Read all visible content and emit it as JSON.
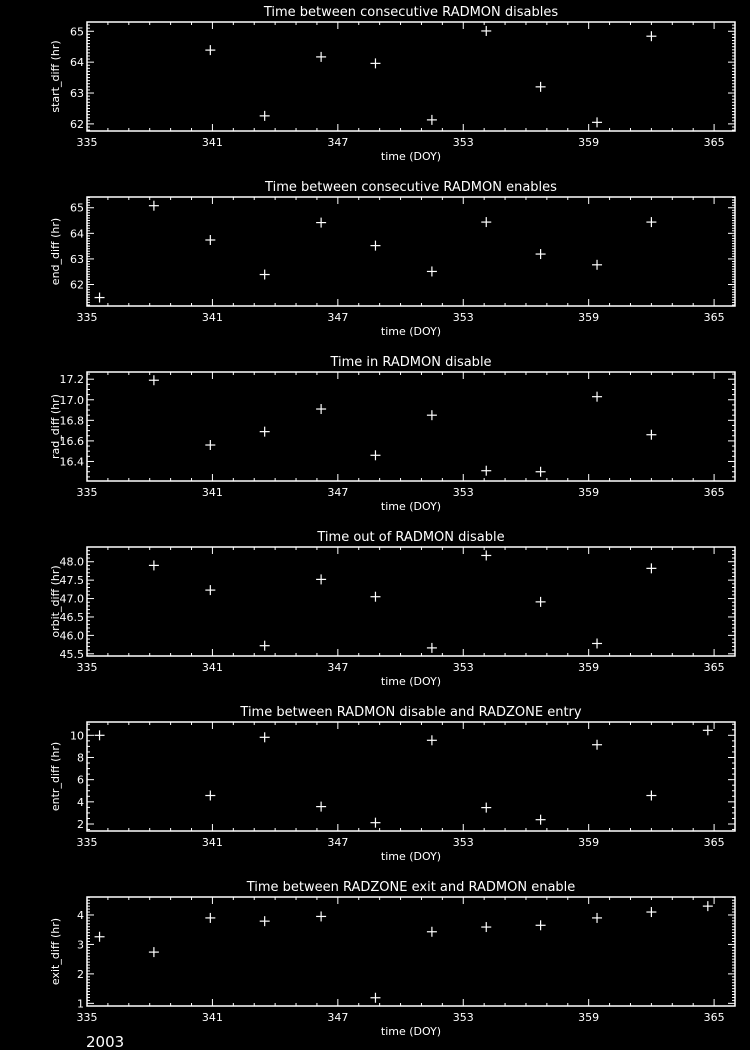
{
  "footer": {
    "year": "2003"
  },
  "colors": {
    "background": "#000000",
    "foreground": "#ffffff"
  },
  "chart_data": [
    {
      "type": "scatter",
      "marker": "plus",
      "title": "Time between consecutive RADMON disables",
      "xlabel": "time (DOY)",
      "ylabel": "start_diff (hr)",
      "xlim": [
        335,
        366
      ],
      "ylim": [
        61.77,
        65.3
      ],
      "xticks": [
        335,
        341,
        347,
        353,
        359,
        365
      ],
      "yticks": [
        62,
        63,
        64,
        65
      ],
      "ytick_labels": [
        "62",
        "63",
        "64",
        "65"
      ],
      "x": [
        340.9,
        343.5,
        346.2,
        348.8,
        351.5,
        354.1,
        356.7,
        359.4,
        362.0
      ],
      "y": [
        64.39,
        62.26,
        64.17,
        63.96,
        62.13,
        65.01,
        63.2,
        62.05,
        64.84
      ]
    },
    {
      "type": "scatter",
      "marker": "plus",
      "title": "Time between consecutive RADMON enables",
      "xlabel": "time (DOY)",
      "ylabel": "end_diff (hr)",
      "xlim": [
        335,
        366
      ],
      "ylim": [
        61.16,
        65.42
      ],
      "xticks": [
        335,
        341,
        347,
        353,
        359,
        365
      ],
      "yticks": [
        62,
        63,
        64,
        65
      ],
      "ytick_labels": [
        "62",
        "63",
        "64",
        "65"
      ],
      "x": [
        335.6,
        338.2,
        340.9,
        343.5,
        346.2,
        348.8,
        351.5,
        354.1,
        356.7,
        359.4,
        362.0
      ],
      "y": [
        61.49,
        65.08,
        63.74,
        62.39,
        64.42,
        63.52,
        62.51,
        64.44,
        63.19,
        62.77,
        64.44
      ]
    },
    {
      "type": "scatter",
      "marker": "plus",
      "title": "Time in RADMON disable",
      "xlabel": "time (DOY)",
      "ylabel": "rad_diff (hr)",
      "xlim": [
        335,
        366
      ],
      "ylim": [
        16.21,
        17.27
      ],
      "xticks": [
        335,
        341,
        347,
        353,
        359,
        365
      ],
      "yticks": [
        16.4,
        16.6,
        16.8,
        17.0,
        17.2
      ],
      "ytick_labels": [
        "16.4",
        "16.6",
        "16.8",
        "17.0",
        "17.2"
      ],
      "x": [
        338.2,
        340.9,
        343.5,
        346.2,
        348.8,
        351.5,
        354.1,
        356.7,
        359.4,
        362.0
      ],
      "y": [
        17.19,
        16.56,
        16.69,
        16.91,
        16.46,
        16.85,
        16.31,
        16.3,
        17.03,
        16.66
      ]
    },
    {
      "type": "scatter",
      "marker": "plus",
      "title": "Time out of RADMON disable",
      "xlabel": "time (DOY)",
      "ylabel": "orbit_diff (hr)",
      "xlim": [
        335,
        366
      ],
      "ylim": [
        45.44,
        48.4
      ],
      "xticks": [
        335,
        341,
        347,
        353,
        359,
        365
      ],
      "yticks": [
        45.5,
        46.0,
        46.5,
        47.0,
        47.5,
        48.0
      ],
      "ytick_labels": [
        "45.5",
        "46.0",
        "46.5",
        "47.0",
        "47.5",
        "48.0"
      ],
      "x": [
        338.2,
        340.9,
        343.5,
        346.2,
        348.8,
        351.5,
        354.1,
        356.7,
        359.4,
        362.0
      ],
      "y": [
        47.9,
        47.23,
        45.72,
        47.52,
        47.05,
        45.66,
        48.17,
        46.91,
        45.78,
        47.82
      ]
    },
    {
      "type": "scatter",
      "marker": "plus",
      "title": "Time between RADMON disable and RADZONE entry",
      "xlabel": "time (DOY)",
      "ylabel": "entr_diff (hr)",
      "xlim": [
        335,
        366
      ],
      "ylim": [
        1.37,
        11.2
      ],
      "xticks": [
        335,
        341,
        347,
        353,
        359,
        365
      ],
      "yticks": [
        2,
        4,
        6,
        8,
        10
      ],
      "ytick_labels": [
        "2",
        "4",
        "6",
        "8",
        "10"
      ],
      "x": [
        335.6,
        340.9,
        343.5,
        346.2,
        348.8,
        351.5,
        354.1,
        356.7,
        359.4,
        362.0,
        364.7
      ],
      "y": [
        10.0,
        4.57,
        9.82,
        3.57,
        2.12,
        9.55,
        3.48,
        2.39,
        9.15,
        4.57,
        10.45
      ]
    },
    {
      "type": "scatter",
      "marker": "plus",
      "title": "Time between RADZONE exit and RADMON enable",
      "xlabel": "time (DOY)",
      "ylabel": "exit_diff (hr)",
      "xlim": [
        335,
        366
      ],
      "ylim": [
        0.91,
        4.61
      ],
      "xticks": [
        335,
        341,
        347,
        353,
        359,
        365
      ],
      "yticks": [
        1,
        2,
        3,
        4
      ],
      "ytick_labels": [
        "1",
        "2",
        "3",
        "4"
      ],
      "x": [
        335.6,
        338.2,
        340.9,
        343.5,
        346.2,
        348.8,
        351.5,
        354.1,
        356.7,
        359.4,
        362.0,
        364.7
      ],
      "y": [
        3.26,
        2.74,
        3.9,
        3.79,
        3.95,
        1.19,
        3.43,
        3.59,
        3.65,
        3.9,
        4.1,
        4.3
      ]
    }
  ]
}
